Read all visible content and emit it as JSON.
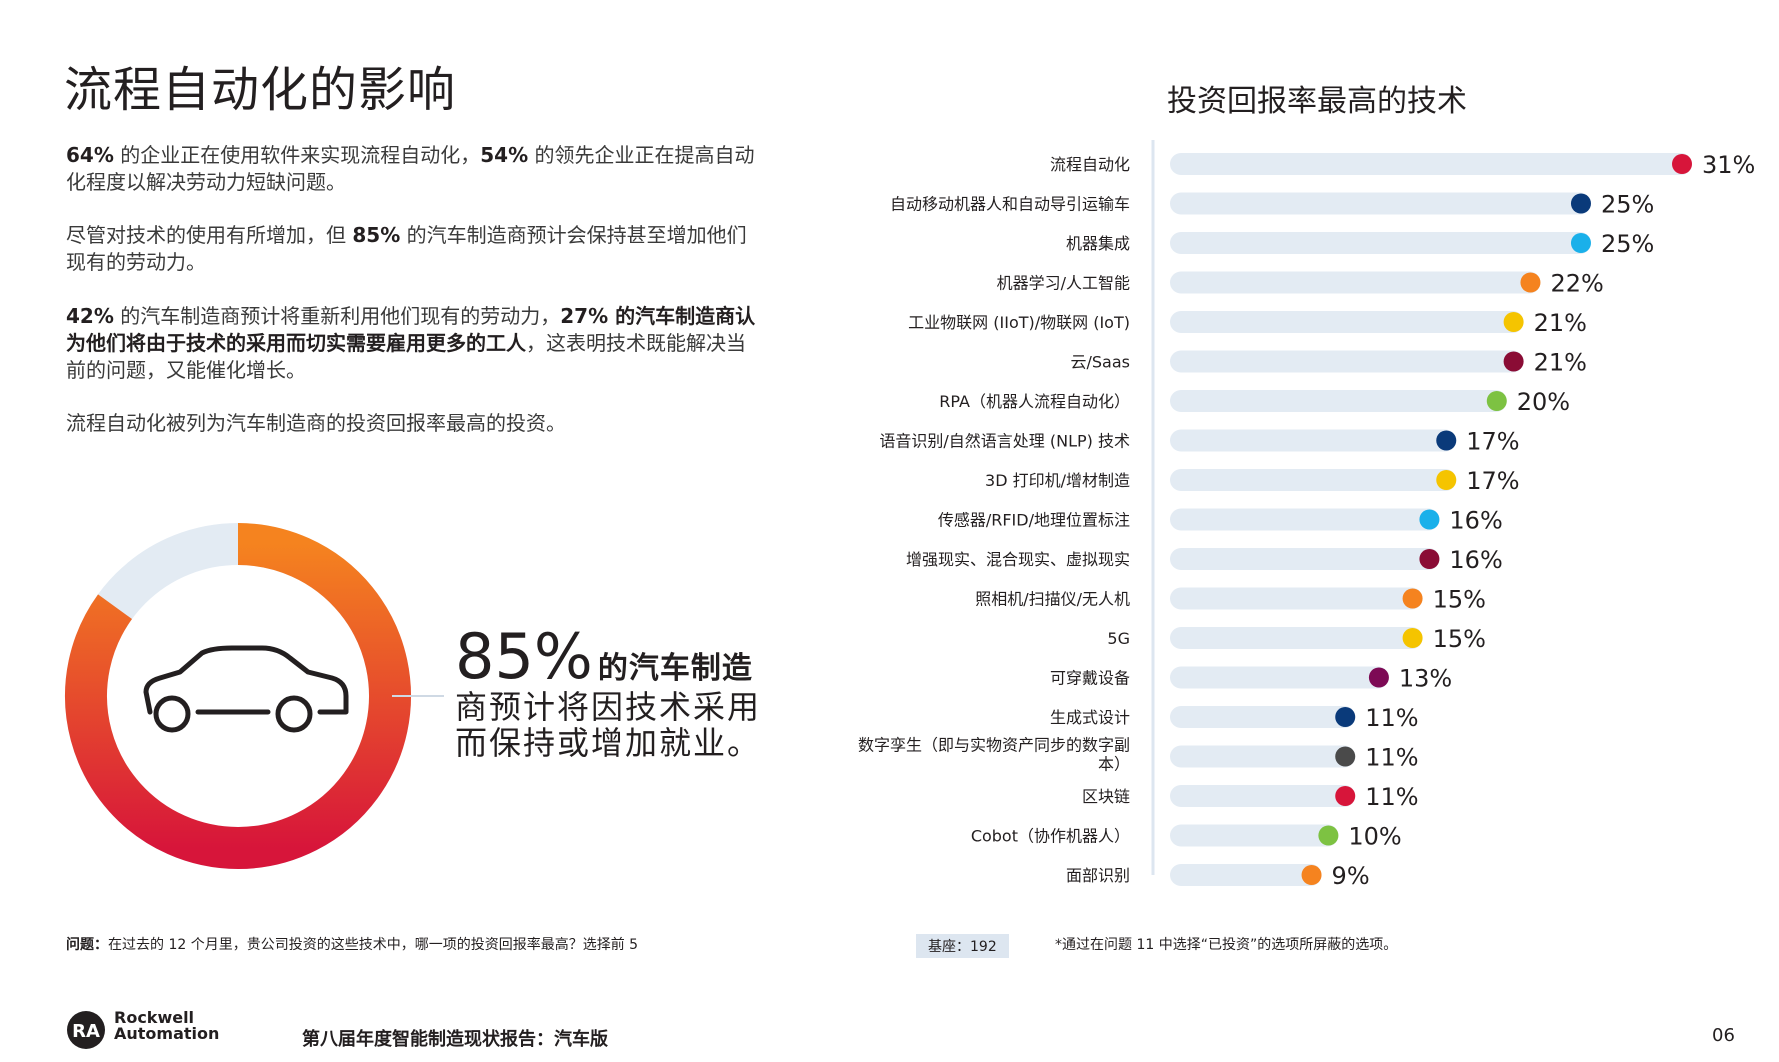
{
  "page": {
    "title": "流程自动化的影响",
    "para1_b1": "64%",
    "para1_t1": " 的企业正在使用软件来实现流程自动化，",
    "para1_b2": "54%",
    "para1_t2": " 的领先企业正在提高自动化程度以解决劳动力短缺问题。",
    "para2_t1": "尽管对技术的使用有所增加，但 ",
    "para2_b1": "85%",
    "para2_t2": " 的汽车制造商预计会保持甚至增加他们现有的劳动力。",
    "para3_b1": "42%",
    "para3_t1": " 的汽车制造商预计将重新利用他们现有的劳动力，",
    "para3_b2": "27% 的汽车制造商认为他们将由于技术的采用而切实需要雇用更多的工人",
    "para3_t2": "，这表明技术既能解决当前的问题，又能催化增长。",
    "para4": "流程自动化被列为汽车制造商的投资回报率最高的投资。"
  },
  "donut": {
    "value": 85,
    "pct_text": "85%",
    "line1": "的汽车制造",
    "line2": "商预计将因技术采用",
    "line3": "而保持或增加就业。",
    "colors": {
      "start": "#f5831f",
      "end": "#d7153a",
      "remainder": "#e3ebf3",
      "icon": "#231f20"
    }
  },
  "chart_data": {
    "type": "bar",
    "title": "投资回报率最高的技术",
    "categories": [
      "流程自动化",
      "自动移动机器人和自动导引运输车",
      "机器集成",
      "机器学习/人工智能",
      "工业物联网 (IIoT)/物联网 (IoT)",
      "云/Saas",
      "RPA（机器人流程自动化）",
      "语音识别/自然语言处理 (NLP) 技术",
      "3D 打印机/增材制造",
      "传感器/RFID/地理位置标注",
      "增强现实、混合现实、虚拟现实",
      "照相机/扫描仪/无人机",
      "5G",
      "可穿戴设备",
      "生成式设计",
      "数字孪生（即与实物资产同步的数字副本）",
      "区块链",
      "Cobot（协作机器人）",
      "面部识别"
    ],
    "values": [
      31,
      25,
      25,
      22,
      21,
      21,
      20,
      17,
      17,
      16,
      16,
      15,
      15,
      13,
      11,
      11,
      11,
      10,
      9
    ],
    "value_labels": [
      "31%",
      "25%",
      "25%",
      "22%",
      "21%",
      "21%",
      "20%",
      "17%",
      "17%",
      "16%",
      "16%",
      "15%",
      "15%",
      "13%",
      "11%",
      "11%",
      "11%",
      "10%",
      "9%"
    ],
    "dot_colors": [
      "#d7153a",
      "#0a3a7a",
      "#1ab0ea",
      "#f5831f",
      "#f5c400",
      "#8a0c35",
      "#7dc242",
      "#0a3a7a",
      "#f5c400",
      "#1ab0ea",
      "#8a0c35",
      "#f5831f",
      "#f5c400",
      "#7d0a55",
      "#0a3a7a",
      "#4a4a4a",
      "#d7153a",
      "#7dc242",
      "#f5831f"
    ],
    "xlim": [
      0,
      31
    ],
    "track_color": "#e3ebf3",
    "axis_color": "#dde6f0"
  },
  "footer": {
    "question_label": "问题：",
    "question_text": "在过去的 12 个月里，贵公司投资的这些技术中，哪一项的投资回报率最高？选择前 5",
    "base": "基座：192",
    "note": "*通过在问题 11 中选择“已投资”的选项所屏蔽的选项。",
    "logo_line1": "Rockwell",
    "logo_line2": "Automation",
    "logo_mark": "RA",
    "report_name": "第八届年度智能制造现状报告：汽车版",
    "page_number": "06"
  }
}
